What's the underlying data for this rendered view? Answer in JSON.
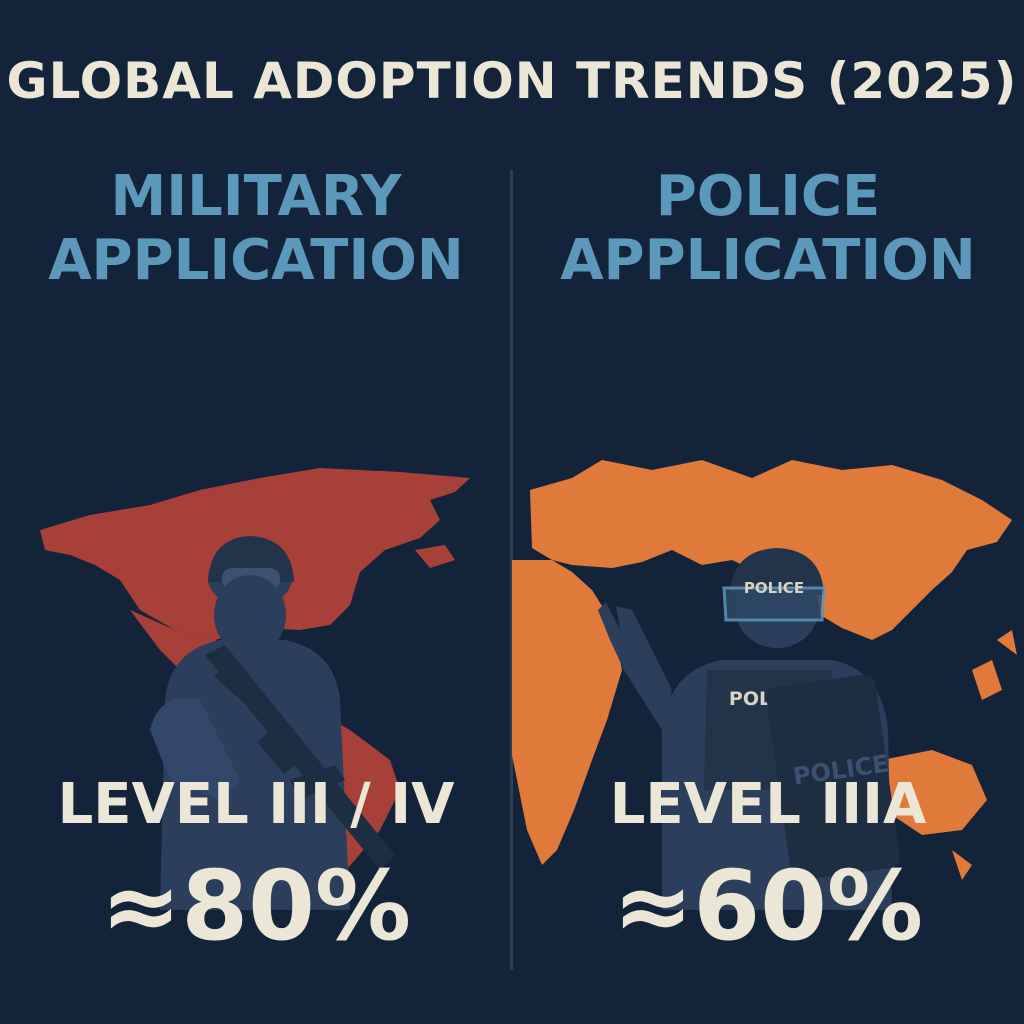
{
  "title": "GLOBAL ADOPTION TRENDS (2025)",
  "left_panel": {
    "heading_line1": "MILITARY",
    "heading_line2": "APPLICATION",
    "level": "LEVEL III / IV",
    "percent": "≈80%",
    "map_color": "#a8403a",
    "figure": "soldier-with-rifle"
  },
  "right_panel": {
    "heading_line1": "POLICE",
    "heading_line2": "APPLICATION",
    "level": "LEVEL IIIA",
    "percent": "≈60%",
    "map_color": "#e07a3a",
    "figure": "police-officer-with-shield",
    "helmet_label": "POLICE",
    "vest_label": "POLICE",
    "shield_label": "POLICE"
  },
  "colors": {
    "background": "#13243a",
    "heading": "#5b98ba",
    "text": "#ece6d6",
    "figure": "#2b3f5c"
  }
}
